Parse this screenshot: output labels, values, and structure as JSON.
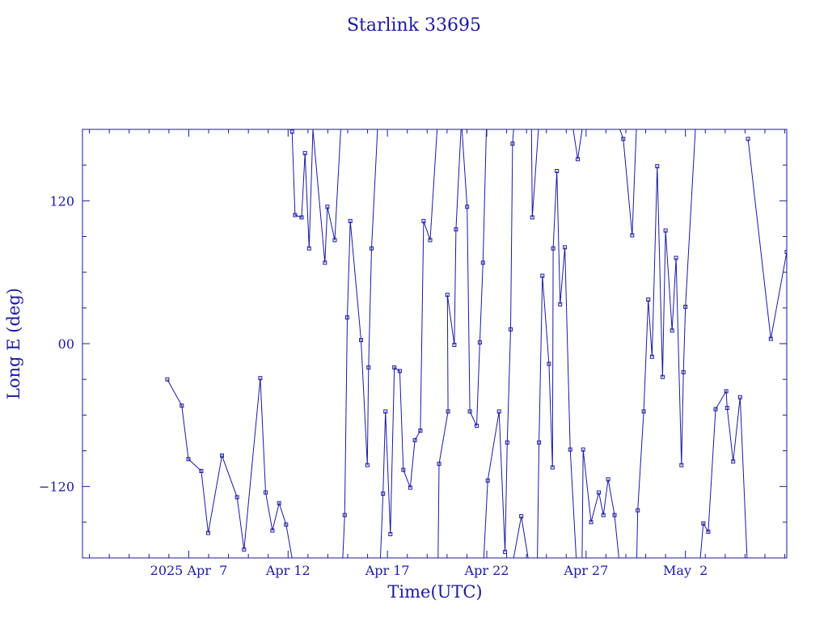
{
  "chart_data": {
    "type": "line",
    "title": "Starlink 33695",
    "xlabel": "Time(UTC)",
    "ylabel": "Long E (deg)",
    "xlim": [
      -3.35,
      32.1
    ],
    "ylim": [
      -180,
      180
    ],
    "x_ticks": [
      {
        "value": 2.0,
        "label": "2025 Apr  7"
      },
      {
        "value": 7.0,
        "label": "Apr 12"
      },
      {
        "value": 12.0,
        "label": "Apr 17"
      },
      {
        "value": 17.0,
        "label": "Apr 22"
      },
      {
        "value": 22.0,
        "label": "Apr 27"
      },
      {
        "value": 27.0,
        "label": "May  2"
      }
    ],
    "y_ticks": [
      {
        "value": 120,
        "label": "120"
      },
      {
        "value": 0,
        "label": "00"
      },
      {
        "value": -120,
        "label": "−120"
      }
    ],
    "series": [
      {
        "color": "#1a1aa0",
        "points": [
          [
            0.92,
            -30
          ],
          [
            1.65,
            -52
          ],
          [
            1.98,
            -97
          ],
          [
            2.63,
            -107
          ],
          [
            2.98,
            -159
          ],
          [
            3.67,
            -94
          ],
          [
            4.43,
            -129
          ],
          [
            4.78,
            -173
          ],
          [
            5.6,
            -29
          ],
          [
            5.87,
            -125
          ],
          [
            6.21,
            -157
          ],
          [
            6.55,
            -134
          ],
          [
            6.9,
            -152
          ],
          [
            7.2,
            -180
          ],
          [
            7.2,
            178
          ],
          [
            7.35,
            108
          ],
          [
            7.68,
            106
          ],
          [
            7.85,
            160
          ],
          [
            8.06,
            80
          ],
          [
            8.25,
            180
          ],
          [
            8.85,
            68
          ],
          [
            8.98,
            115
          ],
          [
            9.35,
            87
          ],
          [
            9.65,
            180
          ],
          [
            9.75,
            -180
          ],
          [
            9.85,
            -144
          ],
          [
            9.98,
            22
          ],
          [
            10.13,
            103
          ],
          [
            10.67,
            3
          ],
          [
            10.99,
            -102
          ],
          [
            11.05,
            -20
          ],
          [
            11.2,
            80
          ],
          [
            11.5,
            180
          ],
          [
            11.65,
            -180
          ],
          [
            11.78,
            -126
          ],
          [
            11.9,
            -57
          ],
          [
            12.15,
            -160
          ],
          [
            12.35,
            -20
          ],
          [
            12.62,
            -23
          ],
          [
            12.8,
            -106
          ],
          [
            13.15,
            -121
          ],
          [
            13.38,
            -81
          ],
          [
            13.66,
            -73
          ],
          [
            13.82,
            103
          ],
          [
            14.15,
            87
          ],
          [
            14.5,
            180
          ],
          [
            14.55,
            -180
          ],
          [
            14.6,
            -101
          ],
          [
            15.05,
            -57
          ],
          [
            15.02,
            41
          ],
          [
            15.37,
            -1
          ],
          [
            15.45,
            96
          ],
          [
            15.7,
            180
          ],
          [
            15.75,
            180
          ],
          [
            16.01,
            115
          ],
          [
            16.15,
            -57
          ],
          [
            16.49,
            -69
          ],
          [
            16.65,
            1
          ],
          [
            16.81,
            68
          ],
          [
            16.98,
            180
          ],
          [
            16.85,
            -180
          ],
          [
            17.05,
            -115
          ],
          [
            17.62,
            -57
          ],
          [
            17.92,
            -175
          ],
          [
            18.03,
            -83
          ],
          [
            18.2,
            12
          ],
          [
            18.3,
            168
          ],
          [
            18.35,
            180
          ],
          [
            18.35,
            -180
          ],
          [
            18.74,
            -145
          ],
          [
            19.08,
            -180
          ],
          [
            19.25,
            180
          ],
          [
            19.29,
            106
          ],
          [
            19.6,
            180
          ],
          [
            19.55,
            -180
          ],
          [
            19.63,
            -83
          ],
          [
            19.8,
            57
          ],
          [
            20.13,
            -17
          ],
          [
            20.31,
            -104
          ],
          [
            20.34,
            80
          ],
          [
            20.53,
            145
          ],
          [
            20.69,
            33
          ],
          [
            20.93,
            81
          ],
          [
            21.2,
            -89
          ],
          [
            21.5,
            -180
          ],
          [
            21.35,
            180
          ],
          [
            21.58,
            155
          ],
          [
            21.8,
            180
          ],
          [
            21.8,
            -180
          ],
          [
            21.85,
            -89
          ],
          [
            22.25,
            -150
          ],
          [
            22.64,
            -125
          ],
          [
            22.87,
            -144
          ],
          [
            23.11,
            -114
          ],
          [
            23.43,
            -144
          ],
          [
            23.65,
            -180
          ],
          [
            23.7,
            180
          ],
          [
            23.87,
            172
          ],
          [
            24.32,
            91
          ],
          [
            24.53,
            180
          ],
          [
            24.55,
            -180
          ],
          [
            24.6,
            -140
          ],
          [
            24.9,
            -57
          ],
          [
            25.13,
            37
          ],
          [
            25.32,
            -11
          ],
          [
            25.58,
            149
          ],
          [
            25.85,
            -28
          ],
          [
            26.0,
            95
          ],
          [
            26.33,
            11
          ],
          [
            26.53,
            72
          ],
          [
            26.8,
            -102
          ],
          [
            26.9,
            -24
          ],
          [
            27.0,
            31
          ],
          [
            27.5,
            180
          ],
          [
            27.75,
            -180
          ],
          [
            27.9,
            -151
          ],
          [
            28.15,
            -158
          ],
          [
            28.52,
            -55
          ],
          [
            29.05,
            -40
          ],
          [
            29.1,
            -54
          ],
          [
            29.4,
            -99
          ],
          [
            29.75,
            -45
          ],
          [
            30.1,
            -180
          ],
          [
            30.15,
            172
          ],
          [
            31.3,
            4
          ],
          [
            32.1,
            77
          ]
        ],
        "segments": [
          [
            0,
            14
          ],
          [
            14,
            24
          ],
          [
            24,
            33
          ],
          [
            33,
            46
          ],
          [
            46,
            53
          ],
          [
            53,
            60
          ],
          [
            60,
            68
          ],
          [
            68,
            71
          ],
          [
            71,
            74
          ],
          [
            74,
            85
          ],
          [
            85,
            88
          ],
          [
            88,
            96
          ],
          [
            96,
            100
          ],
          [
            100,
            114
          ],
          [
            114,
            123
          ],
          [
            123,
            126
          ]
        ]
      }
    ]
  }
}
